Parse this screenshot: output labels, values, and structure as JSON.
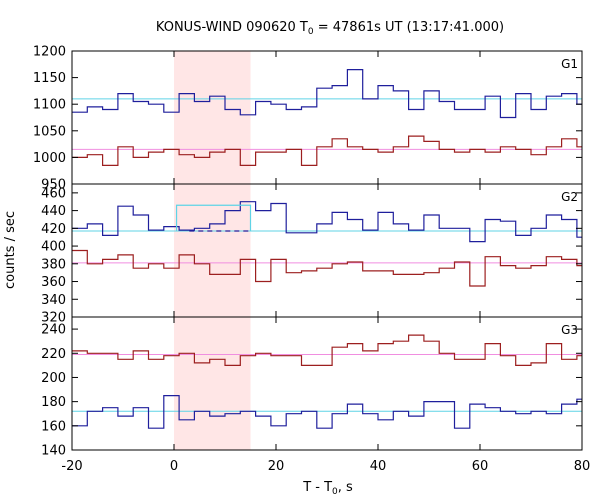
{
  "chart_data": {
    "type": "line",
    "title_main": "KONUS-WIND 090620 T",
    "title_sub": "0",
    "title_rest": " = 47861s UT (13:17:41.000)",
    "ylabel": "counts / sec",
    "xlabel_main": "T - T",
    "xlabel_sub": "0",
    "xlabel_rest": ", s",
    "xlim": [
      -20,
      80
    ],
    "x_ticks": [
      -20,
      0,
      20,
      40,
      60,
      80
    ],
    "highlight_region": [
      0,
      15
    ],
    "colors": {
      "blue": "#1f1f9c",
      "red": "#9c1f1f",
      "cyan": "#5fd3e6",
      "pink": "#f08ee0",
      "highlight": "#ffe6e6"
    },
    "bin_edges": [
      -20,
      -17,
      -14,
      -11,
      -8,
      -5,
      -2,
      1,
      4,
      7,
      10,
      13,
      16,
      19,
      22,
      25,
      28,
      31,
      34,
      37,
      40,
      43,
      46,
      49,
      52,
      55,
      58,
      61,
      64,
      67,
      70,
      73,
      76,
      79,
      80
    ],
    "panels": [
      {
        "label": "G1",
        "ylim": [
          950,
          1200
        ],
        "y_ticks": [
          950,
          1000,
          1050,
          1100,
          1150,
          1200
        ],
        "series": [
          {
            "name": "blue",
            "values": [
              1085,
              1095,
              1090,
              1120,
              1105,
              1100,
              1085,
              1120,
              1105,
              1115,
              1090,
              1080,
              1105,
              1100,
              1090,
              1095,
              1130,
              1135,
              1165,
              1110,
              1135,
              1125,
              1090,
              1125,
              1105,
              1090,
              1090,
              1115,
              1075,
              1120,
              1090,
              1115,
              1120,
              1100
            ]
          },
          {
            "name": "red",
            "values": [
              1000,
              1005,
              985,
              1020,
              1000,
              1010,
              1015,
              1005,
              1000,
              1010,
              1015,
              985,
              1010,
              1010,
              1015,
              985,
              1020,
              1035,
              1020,
              1015,
              1010,
              1020,
              1040,
              1030,
              1015,
              1010,
              1015,
              1010,
              1020,
              1015,
              1005,
              1020,
              1035,
              1020
            ]
          }
        ],
        "reference_lines": [
          {
            "name": "cyan",
            "value": 1110
          },
          {
            "name": "pink",
            "value": 1015
          }
        ]
      },
      {
        "label": "G2",
        "ylim": [
          320,
          470
        ],
        "y_ticks": [
          320,
          340,
          360,
          380,
          400,
          420,
          440,
          460
        ],
        "series": [
          {
            "name": "blue",
            "values": [
              420,
              425,
              412,
              445,
              435,
              418,
              422,
              418,
              420,
              425,
              440,
              450,
              440,
              448,
              415,
              415,
              425,
              438,
              430,
              418,
              438,
              425,
              418,
              435,
              420,
              420,
              405,
              430,
              428,
              412,
              420,
              435,
              430,
              410
            ]
          },
          {
            "name": "red",
            "values": [
              395,
              380,
              385,
              390,
              375,
              380,
              375,
              390,
              380,
              368,
              368,
              385,
              360,
              385,
              370,
              372,
              375,
              380,
              382,
              372,
              372,
              368,
              368,
              370,
              375,
              382,
              355,
              388,
              378,
              375,
              378,
              388,
              385,
              378
            ]
          }
        ],
        "reference_lines": [
          {
            "name": "cyan",
            "value": 417
          },
          {
            "name": "pink",
            "value": 381
          }
        ],
        "box": {
          "x_start": 0.5,
          "x_end": 15,
          "value": 446
        },
        "dashed": {
          "x_start": 3,
          "x_end": 15,
          "value": 417
        }
      },
      {
        "label": "G3",
        "ylim": [
          140,
          250
        ],
        "y_ticks": [
          140,
          160,
          180,
          200,
          220,
          240
        ],
        "series": [
          {
            "name": "blue",
            "values": [
              160,
              172,
              175,
              168,
              175,
              158,
              185,
              165,
              172,
              168,
              170,
              172,
              168,
              160,
              170,
              172,
              158,
              170,
              178,
              170,
              165,
              172,
              168,
              180,
              180,
              158,
              178,
              175,
              172,
              170,
              172,
              170,
              178,
              182
            ]
          },
          {
            "name": "red",
            "values": [
              222,
              220,
              220,
              215,
              222,
              215,
              218,
              220,
              212,
              215,
              210,
              218,
              220,
              218,
              218,
              210,
              210,
              225,
              228,
              222,
              228,
              230,
              235,
              230,
              220,
              215,
              215,
              228,
              218,
              210,
              212,
              228,
              215,
              218
            ]
          }
        ],
        "reference_lines": [
          {
            "name": "cyan",
            "value": 172
          },
          {
            "name": "pink",
            "value": 219
          }
        ]
      }
    ]
  }
}
